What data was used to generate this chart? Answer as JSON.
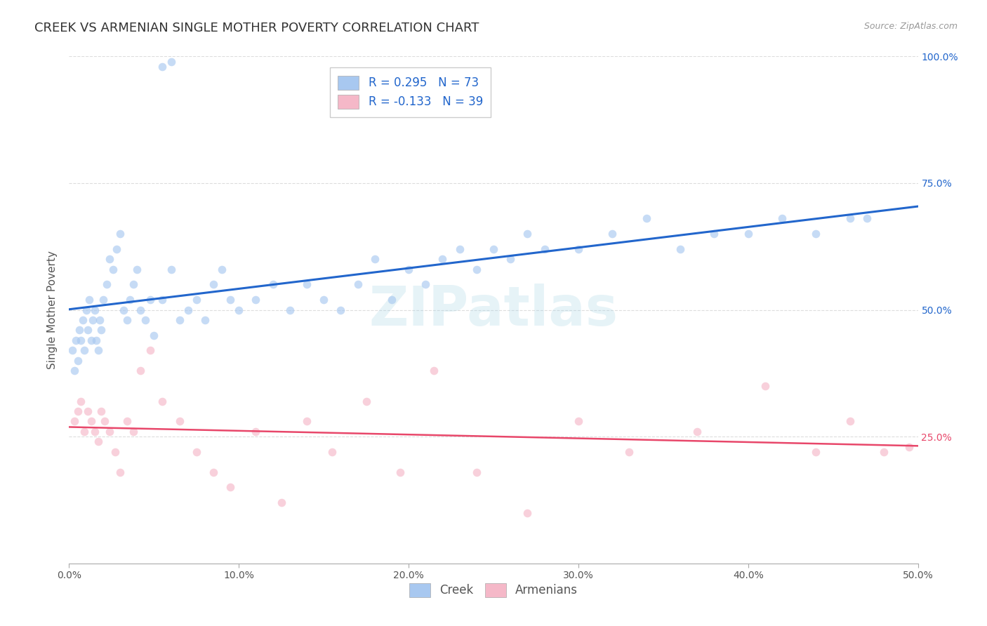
{
  "title": "CREEK VS ARMENIAN SINGLE MOTHER POVERTY CORRELATION CHART",
  "source": "Source: ZipAtlas.com",
  "ylabel": "Single Mother Poverty",
  "x_min": 0.0,
  "x_max": 0.5,
  "y_min": 0.0,
  "y_max": 1.0,
  "x_ticks": [
    0.0,
    0.1,
    0.2,
    0.3,
    0.4,
    0.5
  ],
  "x_tick_labels": [
    "0.0%",
    "10.0%",
    "20.0%",
    "30.0%",
    "40.0%",
    "50.0%"
  ],
  "y_ticks": [
    0.25,
    0.5,
    0.75,
    1.0
  ],
  "y_tick_labels": [
    "25.0%",
    "50.0%",
    "75.0%",
    "100.0%"
  ],
  "creek_color": "#a8c8f0",
  "armenian_color": "#f5b8c8",
  "creek_line_color": "#2266cc",
  "armenian_line_color": "#e8476a",
  "creek_R": 0.295,
  "creek_N": 73,
  "armenian_R": -0.133,
  "armenian_N": 39,
  "background_color": "#ffffff",
  "grid_color": "#dddddd",
  "watermark": "ZIPatlas",
  "creek_x": [
    0.002,
    0.003,
    0.004,
    0.005,
    0.006,
    0.007,
    0.008,
    0.009,
    0.01,
    0.011,
    0.012,
    0.013,
    0.014,
    0.015,
    0.016,
    0.017,
    0.018,
    0.019,
    0.02,
    0.022,
    0.024,
    0.026,
    0.028,
    0.03,
    0.032,
    0.034,
    0.036,
    0.038,
    0.04,
    0.042,
    0.045,
    0.048,
    0.05,
    0.055,
    0.06,
    0.065,
    0.07,
    0.075,
    0.08,
    0.085,
    0.09,
    0.095,
    0.1,
    0.11,
    0.12,
    0.13,
    0.14,
    0.15,
    0.16,
    0.17,
    0.18,
    0.19,
    0.2,
    0.21,
    0.22,
    0.23,
    0.24,
    0.25,
    0.26,
    0.27,
    0.28,
    0.3,
    0.32,
    0.34,
    0.36,
    0.38,
    0.4,
    0.42,
    0.44,
    0.46,
    0.47,
    0.055,
    0.06
  ],
  "creek_y": [
    0.42,
    0.38,
    0.44,
    0.4,
    0.46,
    0.44,
    0.48,
    0.42,
    0.5,
    0.46,
    0.52,
    0.44,
    0.48,
    0.5,
    0.44,
    0.42,
    0.48,
    0.46,
    0.52,
    0.55,
    0.6,
    0.58,
    0.62,
    0.65,
    0.5,
    0.48,
    0.52,
    0.55,
    0.58,
    0.5,
    0.48,
    0.52,
    0.45,
    0.52,
    0.58,
    0.48,
    0.5,
    0.52,
    0.48,
    0.55,
    0.58,
    0.52,
    0.5,
    0.52,
    0.55,
    0.5,
    0.55,
    0.52,
    0.5,
    0.55,
    0.6,
    0.52,
    0.58,
    0.55,
    0.6,
    0.62,
    0.58,
    0.62,
    0.6,
    0.65,
    0.62,
    0.62,
    0.65,
    0.68,
    0.62,
    0.65,
    0.65,
    0.68,
    0.65,
    0.68,
    0.68,
    0.98,
    0.99
  ],
  "armenian_x": [
    0.003,
    0.005,
    0.007,
    0.009,
    0.011,
    0.013,
    0.015,
    0.017,
    0.019,
    0.021,
    0.024,
    0.027,
    0.03,
    0.034,
    0.038,
    0.042,
    0.048,
    0.055,
    0.065,
    0.075,
    0.085,
    0.095,
    0.11,
    0.125,
    0.14,
    0.155,
    0.175,
    0.195,
    0.215,
    0.24,
    0.27,
    0.3,
    0.33,
    0.37,
    0.41,
    0.44,
    0.46,
    0.48,
    0.495
  ],
  "armenian_y": [
    0.28,
    0.3,
    0.32,
    0.26,
    0.3,
    0.28,
    0.26,
    0.24,
    0.3,
    0.28,
    0.26,
    0.22,
    0.18,
    0.28,
    0.26,
    0.38,
    0.42,
    0.32,
    0.28,
    0.22,
    0.18,
    0.15,
    0.26,
    0.12,
    0.28,
    0.22,
    0.32,
    0.18,
    0.38,
    0.18,
    0.1,
    0.28,
    0.22,
    0.26,
    0.35,
    0.22,
    0.28,
    0.22,
    0.23
  ],
  "marker_size": 70,
  "marker_alpha": 0.65,
  "title_fontsize": 13,
  "axis_label_fontsize": 11,
  "tick_fontsize": 10,
  "legend_fontsize": 12,
  "right_tick_color_blue": "#2266cc",
  "right_tick_color_pink": "#e8476a"
}
